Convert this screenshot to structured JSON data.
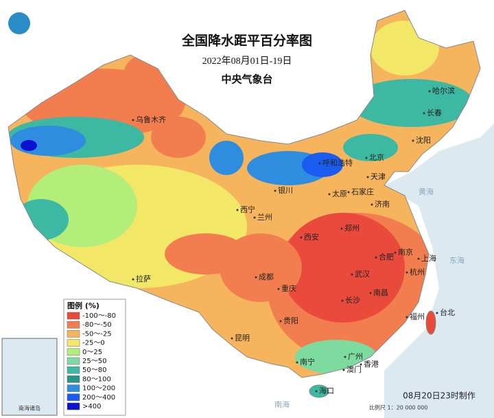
{
  "header": {
    "title": "全国降水距平百分率图",
    "subtitle": "2022年08月01日-19日",
    "agency": "中央气象台"
  },
  "legend": {
    "title": "图例 (%)",
    "items": [
      {
        "label": "-100～-80",
        "color": "#ea4a3c"
      },
      {
        "label": "-80～-50",
        "color": "#f27d4e"
      },
      {
        "label": "-50～-25",
        "color": "#f6b45c"
      },
      {
        "label": "-25～0",
        "color": "#f2e766"
      },
      {
        "label": "0～25",
        "color": "#b4ee7a"
      },
      {
        "label": "25～50",
        "color": "#7ddba0"
      },
      {
        "label": "50～80",
        "color": "#3db8a2"
      },
      {
        "label": "80～100",
        "color": "#279488"
      },
      {
        "label": "100～200",
        "color": "#2f8de0"
      },
      {
        "label": "200～400",
        "color": "#1b5cf0"
      },
      {
        "label": ">400",
        "color": "#0b12cf"
      }
    ]
  },
  "cities": [
    "乌鲁木齐",
    "哈尔滨",
    "长春",
    "沈阳",
    "北京",
    "天津",
    "呼和浩特",
    "石家庄",
    "太原",
    "银川",
    "济南",
    "西宁",
    "兰州",
    "郑州",
    "西安",
    "南京",
    "合肥",
    "上海",
    "杭州",
    "武汉",
    "成都",
    "拉萨",
    "重庆",
    "长沙",
    "南昌",
    "福州",
    "台北",
    "贵阳",
    "昆明",
    "南宁",
    "广州",
    "澳门",
    "香港",
    "海口"
  ],
  "seas": [
    "黄海",
    "东海",
    "南海"
  ],
  "inset": {
    "label": "南海诸岛"
  },
  "footer": {
    "scale": "比例尺 1：20 000 000",
    "made": "08月20日23时制作"
  }
}
